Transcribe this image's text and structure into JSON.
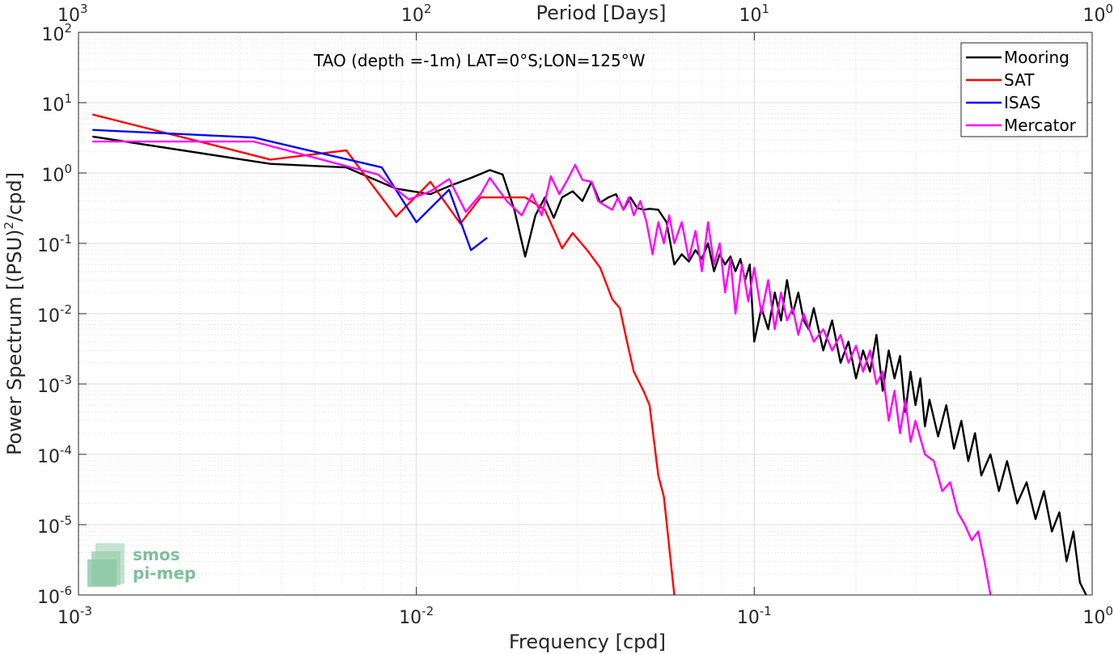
{
  "chart_data": {
    "type": "line",
    "title": "TAO (depth =-1m) LAT=0°S;LON=125°W",
    "xlabel": "Frequency [cpd]",
    "ylabel": "Power Spectrum [(PSU)",
    "ylabel_sup": "2",
    "ylabel_tail": "/cpd]",
    "top_xlabel": "Period [Days]",
    "xscale": "log",
    "yscale": "log",
    "xlim": [
      0.001,
      1
    ],
    "ylim": [
      1e-06,
      100
    ],
    "grid": true,
    "legend_position": "top-right",
    "x_ticks": [
      {
        "v": 0.001,
        "base": "10",
        "exp": "-3"
      },
      {
        "v": 0.01,
        "base": "10",
        "exp": "-2"
      },
      {
        "v": 0.1,
        "base": "10",
        "exp": "-1"
      },
      {
        "v": 1,
        "base": "10",
        "exp": "0"
      }
    ],
    "top_ticks": [
      {
        "v": 0.001,
        "base": "10",
        "exp": "3"
      },
      {
        "v": 0.01,
        "base": "10",
        "exp": "2"
      },
      {
        "v": 0.1,
        "base": "10",
        "exp": "1"
      },
      {
        "v": 1,
        "base": "10",
        "exp": "0"
      }
    ],
    "y_ticks": [
      {
        "v": 1e-06,
        "base": "10",
        "exp": "-6"
      },
      {
        "v": 1e-05,
        "base": "10",
        "exp": "-5"
      },
      {
        "v": 0.0001,
        "base": "10",
        "exp": "-4"
      },
      {
        "v": 0.001,
        "base": "10",
        "exp": "-3"
      },
      {
        "v": 0.01,
        "base": "10",
        "exp": "-2"
      },
      {
        "v": 0.1,
        "base": "10",
        "exp": "-1"
      },
      {
        "v": 1,
        "base": "10",
        "exp": "0"
      },
      {
        "v": 10,
        "base": "10",
        "exp": "1"
      },
      {
        "v": 100,
        "base": "10",
        "exp": "2"
      }
    ],
    "series": [
      {
        "name": "Mooring",
        "color": "#000000",
        "x": [
          0.0011,
          0.0037,
          0.0062,
          0.0087,
          0.011,
          0.0125,
          0.0145,
          0.0165,
          0.018,
          0.0195,
          0.021,
          0.0225,
          0.024,
          0.0255,
          0.027,
          0.029,
          0.031,
          0.033,
          0.035,
          0.037,
          0.039,
          0.041,
          0.043,
          0.045,
          0.047,
          0.049,
          0.052,
          0.055,
          0.058,
          0.061,
          0.064,
          0.067,
          0.07,
          0.073,
          0.076,
          0.079,
          0.082,
          0.085,
          0.088,
          0.091,
          0.094,
          0.097,
          0.1,
          0.105,
          0.11,
          0.115,
          0.12,
          0.125,
          0.13,
          0.135,
          0.14,
          0.145,
          0.15,
          0.16,
          0.17,
          0.18,
          0.19,
          0.2,
          0.21,
          0.22,
          0.23,
          0.24,
          0.25,
          0.26,
          0.27,
          0.28,
          0.29,
          0.3,
          0.31,
          0.32,
          0.33,
          0.35,
          0.37,
          0.39,
          0.41,
          0.43,
          0.45,
          0.47,
          0.5,
          0.53,
          0.56,
          0.6,
          0.64,
          0.68,
          0.72,
          0.76,
          0.8,
          0.84,
          0.88,
          0.92,
          0.96
        ],
        "values": [
          3.3,
          1.35,
          1.2,
          0.6,
          0.5,
          0.65,
          0.85,
          1.1,
          0.95,
          0.3,
          0.065,
          0.25,
          0.45,
          0.23,
          0.45,
          0.55,
          0.4,
          0.75,
          0.38,
          0.45,
          0.5,
          0.3,
          0.45,
          0.32,
          0.3,
          0.31,
          0.3,
          0.2,
          0.05,
          0.07,
          0.055,
          0.08,
          0.06,
          0.1,
          0.04,
          0.07,
          0.05,
          0.065,
          0.04,
          0.06,
          0.03,
          0.05,
          0.004,
          0.012,
          0.006,
          0.02,
          0.008,
          0.03,
          0.01,
          0.02,
          0.008,
          0.006,
          0.012,
          0.003,
          0.008,
          0.002,
          0.004,
          0.0012,
          0.003,
          0.0015,
          0.005,
          0.0008,
          0.003,
          0.0012,
          0.0025,
          0.0004,
          0.0015,
          0.0005,
          0.0012,
          0.00025,
          0.0006,
          0.00018,
          0.0005,
          0.00012,
          0.0003,
          8e-05,
          0.0002,
          5e-05,
          0.0001,
          3e-05,
          8e-05,
          2e-05,
          4e-05,
          1.2e-05,
          3e-05,
          8e-06,
          1.5e-05,
          3e-06,
          8e-06,
          1.5e-06,
          1e-06
        ]
      },
      {
        "name": "SAT",
        "color": "#ff0000",
        "x": [
          0.0011,
          0.0037,
          0.0062,
          0.0087,
          0.011,
          0.0135,
          0.0155,
          0.018,
          0.0195,
          0.021,
          0.024,
          0.027,
          0.029,
          0.032,
          0.035,
          0.038,
          0.04,
          0.042,
          0.044,
          0.047,
          0.049,
          0.052,
          0.054,
          0.058
        ],
        "values": [
          6.8,
          1.55,
          2.1,
          0.24,
          0.75,
          0.19,
          0.45,
          0.45,
          0.45,
          0.45,
          0.3,
          0.085,
          0.14,
          0.08,
          0.045,
          0.016,
          0.012,
          0.004,
          0.0015,
          0.0008,
          0.0005,
          5e-05,
          2.5e-05,
          1e-06
        ]
      },
      {
        "name": "ISAS",
        "color": "#0000ff",
        "x": [
          0.0011,
          0.0033,
          0.0079,
          0.01,
          0.0125,
          0.0145,
          0.0162
        ],
        "values": [
          4.1,
          3.2,
          1.2,
          0.2,
          0.58,
          0.08,
          0.12
        ]
      },
      {
        "name": "Mercator",
        "color": "#ff00ff",
        "x": [
          0.0011,
          0.0033,
          0.0077,
          0.0095,
          0.011,
          0.0125,
          0.014,
          0.0155,
          0.0165,
          0.0185,
          0.0205,
          0.022,
          0.0235,
          0.025,
          0.0265,
          0.028,
          0.0295,
          0.031,
          0.033,
          0.0345,
          0.036,
          0.038,
          0.0395,
          0.041,
          0.0425,
          0.044,
          0.046,
          0.048,
          0.05,
          0.052,
          0.054,
          0.056,
          0.058,
          0.061,
          0.064,
          0.067,
          0.07,
          0.073,
          0.076,
          0.079,
          0.082,
          0.085,
          0.088,
          0.092,
          0.096,
          0.1,
          0.105,
          0.11,
          0.115,
          0.12,
          0.125,
          0.13,
          0.135,
          0.14,
          0.15,
          0.16,
          0.17,
          0.18,
          0.19,
          0.2,
          0.21,
          0.22,
          0.23,
          0.24,
          0.25,
          0.26,
          0.27,
          0.28,
          0.29,
          0.3,
          0.32,
          0.34,
          0.36,
          0.38,
          0.4,
          0.42,
          0.44,
          0.46,
          0.48,
          0.5
        ],
        "values": [
          2.8,
          2.8,
          0.95,
          0.42,
          0.55,
          0.82,
          0.28,
          0.5,
          0.85,
          0.4,
          0.25,
          0.5,
          0.25,
          0.9,
          0.5,
          0.8,
          1.3,
          0.8,
          0.75,
          0.4,
          0.35,
          0.3,
          0.45,
          0.3,
          0.45,
          0.25,
          0.4,
          0.2,
          0.07,
          0.2,
          0.1,
          0.25,
          0.1,
          0.2,
          0.06,
          0.15,
          0.04,
          0.2,
          0.05,
          0.1,
          0.02,
          0.06,
          0.01,
          0.05,
          0.015,
          0.045,
          0.01,
          0.03,
          0.006,
          0.02,
          0.008,
          0.012,
          0.005,
          0.01,
          0.004,
          0.006,
          0.003,
          0.005,
          0.002,
          0.0035,
          0.0015,
          0.003,
          0.001,
          0.0015,
          0.0003,
          0.0008,
          0.0002,
          0.0006,
          0.00015,
          0.0003,
          0.0001,
          8e-05,
          3e-05,
          4e-05,
          1.5e-05,
          1e-05,
          6e-06,
          8e-06,
          3e-06,
          1e-06
        ]
      }
    ]
  },
  "logo": {
    "line1": "smos",
    "line2": "pi-mep"
  }
}
